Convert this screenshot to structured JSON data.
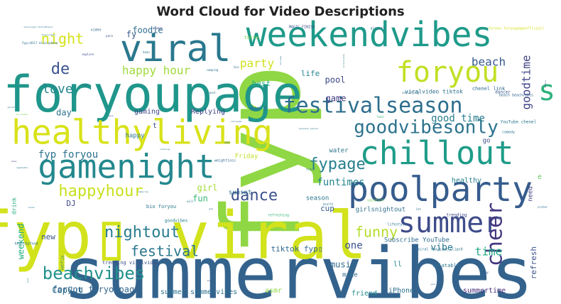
{
  "chart_data": {
    "type": "wordcloud",
    "title": "Word Cloud for Video Descriptions",
    "words": [
      {
        "text": "fyp",
        "weight": 100,
        "color": "#8fd744",
        "rotate": true
      },
      {
        "text": "summervibes",
        "weight": 80,
        "color": "#33638d",
        "rotate": false
      },
      {
        "text": "fyp▯ viral",
        "weight": 78,
        "color": "#d2e21b",
        "rotate": false
      },
      {
        "text": "foryoupage",
        "weight": 70,
        "color": "#1f968b",
        "rotate": false
      },
      {
        "text": "weekendvibes",
        "weight": 52,
        "color": "#1f9a8a",
        "rotate": false
      },
      {
        "text": "viral",
        "weight": 48,
        "color": "#29788e",
        "rotate": false
      },
      {
        "text": "healthyliving",
        "weight": 45,
        "color": "#d8e219",
        "rotate": false
      },
      {
        "text": "poolparty",
        "weight": 42,
        "color": "#365c8d",
        "rotate": false
      },
      {
        "text": "chillout",
        "weight": 42,
        "color": "#1e9c89",
        "rotate": false
      },
      {
        "text": "gamenight",
        "weight": 42,
        "color": "#23888e",
        "rotate": false
      },
      {
        "text": "summer",
        "weight": 40,
        "color": "#3e4c8a",
        "rotate": false
      },
      {
        "text": "foryou",
        "weight": 38,
        "color": "#c2df23",
        "rotate": false
      },
      {
        "text": "festivalseason",
        "weight": 30,
        "color": "#2e6f8e",
        "rotate": false
      },
      {
        "text": "cheer",
        "weight": 30,
        "color": "#453781",
        "rotate": true
      },
      {
        "text": "goodvibesonly",
        "weight": 25,
        "color": "#2c738e",
        "rotate": false
      },
      {
        "text": "s",
        "weight": 40,
        "color": "#2db27d",
        "rotate": false
      },
      {
        "text": "beachvibes",
        "weight": 22,
        "color": "#21918c",
        "rotate": false
      },
      {
        "text": "happyhour",
        "weight": 22,
        "color": "#c8e020",
        "rotate": false
      },
      {
        "text": "dance",
        "weight": 22,
        "color": "#3b528b",
        "rotate": false
      },
      {
        "text": "nightout",
        "weight": 22,
        "color": "#287c8e",
        "rotate": false
      },
      {
        "text": "fypage",
        "weight": 20,
        "color": "#277f8e",
        "rotate": false
      },
      {
        "text": "festival",
        "weight": 20,
        "color": "#2a768e",
        "rotate": false
      },
      {
        "text": "funny",
        "weight": 20,
        "color": "#b5de2b",
        "rotate": false
      },
      {
        "text": "de",
        "weight": 22,
        "color": "#3a548c",
        "rotate": false
      },
      {
        "text": "night",
        "weight": 18,
        "color": "#d5e21a",
        "rotate": false
      },
      {
        "text": "love",
        "weight": 18,
        "color": "#24868e",
        "rotate": false
      },
      {
        "text": "happy hour",
        "weight": 15,
        "color": "#9fda3a",
        "rotate": false
      },
      {
        "text": "party",
        "weight": 15,
        "color": "#d0e11c",
        "rotate": false
      },
      {
        "text": "beach",
        "weight": 15,
        "color": "#375b8d",
        "rotate": false
      },
      {
        "text": "goodtime",
        "weight": 15,
        "color": "#414487",
        "rotate": true
      },
      {
        "text": "good time",
        "weight": 14,
        "color": "#287d8e",
        "rotate": false
      },
      {
        "text": "time",
        "weight": 16,
        "color": "#23a983",
        "rotate": false
      },
      {
        "text": "fyp foryou",
        "weight": 14,
        "color": "#2c718e",
        "rotate": false
      },
      {
        "text": "funtimes",
        "weight": 14,
        "color": "#25858e",
        "rotate": false
      },
      {
        "text": "vibe",
        "weight": 13,
        "color": "#2a778e",
        "rotate": false
      },
      {
        "text": "one",
        "weight": 14,
        "color": "#3b528b",
        "rotate": false
      },
      {
        "text": "music",
        "weight": 12,
        "color": "#31688e",
        "rotate": false
      },
      {
        "text": "CapCut",
        "weight": 12,
        "color": "#2d708e",
        "rotate": false
      },
      {
        "text": "foryou foryoupage",
        "weight": 12,
        "color": "#32658e",
        "rotate": false
      },
      {
        "text": "weekend",
        "weight": 12,
        "color": "#27ad81",
        "rotate": true
      },
      {
        "text": "tiktok fyp▯",
        "weight": 11,
        "color": "#31688e",
        "rotate": false
      },
      {
        "text": "refresh",
        "weight": 11,
        "color": "#3b528b",
        "rotate": true
      },
      {
        "text": "gaming",
        "weight": 10,
        "color": "#3f4788",
        "rotate": false
      },
      {
        "text": "Replying",
        "weight": 10,
        "color": "#414287",
        "rotate": false
      },
      {
        "text": "pool",
        "weight": 12,
        "color": "#3e4989",
        "rotate": false
      },
      {
        "text": "game",
        "weight": 12,
        "color": "#443a83",
        "rotate": false
      },
      {
        "text": "fun",
        "weight": 12,
        "color": "#35b779",
        "rotate": false
      },
      {
        "text": "girl",
        "weight": 12,
        "color": "#a2da37",
        "rotate": false
      },
      {
        "text": "foodie",
        "weight": 12,
        "color": "#2e6e8e",
        "rotate": false
      },
      {
        "text": "day",
        "weight": 12,
        "color": "#2c728e",
        "rotate": false
      },
      {
        "text": "fy",
        "weight": 12,
        "color": "#38598c",
        "rotate": false
      },
      {
        "text": "best",
        "weight": 11,
        "color": "#25ac82",
        "rotate": false
      },
      {
        "text": "life",
        "weight": 11,
        "color": "#25838e",
        "rotate": false
      },
      {
        "text": "healthy",
        "weight": 10,
        "color": "#277f8e",
        "rotate": false
      },
      {
        "text": "summer summervibes",
        "weight": 10,
        "color": "#2c728e",
        "rotate": false
      },
      {
        "text": "asmr",
        "weight": 10,
        "color": "#8ed645",
        "rotate": false
      },
      {
        "text": "iPhone",
        "weight": 10,
        "color": "#2d708e",
        "rotate": false
      },
      {
        "text": "summertime",
        "weight": 10,
        "color": "#472f7d",
        "rotate": false
      },
      {
        "text": "friend",
        "weight": 10,
        "color": "#23888e",
        "rotate": false
      },
      {
        "text": "Subscribe YouTube",
        "weight": 9,
        "color": "#2f6c8e",
        "rotate": false
      },
      {
        "text": "girlsnightout",
        "weight": 9,
        "color": "#2e6f8e",
        "rotate": false
      },
      {
        "text": "season",
        "weight": 9,
        "color": "#2a768e",
        "rotate": false
      },
      {
        "text": "sunset",
        "weight": 9,
        "color": "#31688e",
        "rotate": false
      },
      {
        "text": "make",
        "weight": 9,
        "color": "#2f6b8e",
        "rotate": false
      },
      {
        "text": "ll",
        "weight": 10,
        "color": "#25838e",
        "rotate": false
      },
      {
        "text": "new",
        "weight": 11,
        "color": "#39568c",
        "rotate": false
      },
      {
        "text": "DJ",
        "weight": 11,
        "color": "#3e4a89",
        "rotate": false
      },
      {
        "text": "cup",
        "weight": 11,
        "color": "#365d8d",
        "rotate": false
      },
      {
        "text": "happy",
        "weight": 9,
        "color": "#2a788e",
        "rotate": false
      },
      {
        "text": "Friday",
        "weight": 9,
        "color": "#c0df25",
        "rotate": false
      },
      {
        "text": "water",
        "weight": 9,
        "color": "#2b748e",
        "rotate": false
      },
      {
        "text": "go",
        "weight": 9,
        "color": "#3e4989",
        "rotate": false
      },
      {
        "text": "need",
        "weight": 9,
        "color": "#414487",
        "rotate": true
      },
      {
        "text": "e",
        "weight": 10,
        "color": "#5ec962",
        "rotate": false
      },
      {
        "text": "t",
        "weight": 10,
        "color": "#3f4788",
        "rotate": false
      },
      {
        "text": "don t",
        "weight": 8,
        "color": "#31688e",
        "rotate": false
      },
      {
        "text": "relatable",
        "weight": 7,
        "color": "#2c738e",
        "rotate": false
      },
      {
        "text": "viralvideo tiktok",
        "weight": 8,
        "color": "#2d708e",
        "rotate": false
      },
      {
        "text": "chenel link",
        "weight": 7,
        "color": "#2f6b8e",
        "rotate": false
      },
      {
        "text": "taste",
        "weight": 7,
        "color": "#7ad151",
        "rotate": false
      },
      {
        "text": "drink",
        "weight": 8,
        "color": "#26ad81",
        "rotate": true
      },
      {
        "text": "bio foryou",
        "weight": 7,
        "color": "#2a768e",
        "rotate": false
      },
      {
        "text": "trending viralvideo",
        "weight": 7,
        "color": "#3b528b",
        "rotate": false
      },
      {
        "text": "goodvibes",
        "weight": 6,
        "color": "#27808e",
        "rotate": false
      },
      {
        "text": "dancer",
        "weight": 6,
        "color": "#38588c",
        "rotate": false
      },
      {
        "text": "YouTube chenel",
        "weight": 6,
        "color": "#2a768e",
        "rotate": false
      },
      {
        "text": "trending",
        "weight": 6,
        "color": "#3e4989",
        "rotate": false
      },
      {
        "text": "lifestyle",
        "weight": 5,
        "color": "#2c738e",
        "rotate": false
      },
      {
        "text": "netflix",
        "weight": 5,
        "color": "#2a768e",
        "rotate": true
      },
      {
        "text": "healthyfood",
        "weight": 5,
        "color": "#2d708e",
        "rotate": false
      },
      {
        "text": "weightloss",
        "weight": 5,
        "color": "#31688e",
        "rotate": false
      },
      {
        "text": "refreshing",
        "weight": 5,
        "color": "#35b779",
        "rotate": false
      },
      {
        "text": "vacation",
        "weight": 5,
        "color": "#7ad151",
        "rotate": false
      },
      {
        "text": "comedy",
        "weight": 5,
        "color": "#2c728e",
        "rotate": false
      },
      {
        "text": "viral fun_time_clips0",
        "weight": 5,
        "color": "#2a768e",
        "rotate": false
      },
      {
        "text": "beach beachvibes",
        "weight": 5,
        "color": "#31688e",
        "rotate": false
      },
      {
        "text": "foryou foryoupageofficiall",
        "weight": 5,
        "color": "#d0e11c",
        "rotate": false
      },
      {
        "text": "airport",
        "weight": 5,
        "color": "#2d708e",
        "rotate": false
      },
      {
        "text": "MAGIC FINISH",
        "weight": 5,
        "color": "#3b528b",
        "rotate": false
      },
      {
        "text": "video",
        "weight": 5,
        "color": "#31688e",
        "rotate": false
      },
      {
        "text": "camping",
        "weight": 4,
        "color": "#2c738e",
        "rotate": false
      },
      {
        "text": "travel",
        "weight": 4,
        "color": "#2a768e",
        "rotate": false
      },
      {
        "text": "explore",
        "weight": 4,
        "color": "#3e4989",
        "rotate": false
      },
      {
        "text": "bean",
        "weight": 5,
        "color": "#2c738e",
        "rotate": false
      },
      {
        "text": "always",
        "weight": 4,
        "color": "#3e4989",
        "rotate": false
      },
      {
        "text": "para",
        "weight": 4,
        "color": "#3b528b",
        "rotate": false
      },
      {
        "text": "fyp▯cOS17 dicasiphone",
        "weight": 4,
        "color": "#2d708e",
        "rotate": false
      },
      {
        "text": "tecnologia TechToBrasil",
        "weight": 3,
        "color": "#2a768e",
        "rotate": false
      },
      {
        "text": "Christmas",
        "weight": 3,
        "color": "#7ad151",
        "rotate": false
      },
      {
        "text": "baby",
        "weight": 3,
        "color": "#3e4989",
        "rotate": false
      },
      {
        "text": "vegetable",
        "weight": 3,
        "color": "#2c738e",
        "rotate": false
      },
      {
        "text": "memories",
        "weight": 3,
        "color": "#2d708e",
        "rotate": false
      },
      {
        "text": "cocktail",
        "weight": 3,
        "color": "#31688e",
        "rotate": false
      },
      {
        "text": "mom",
        "weight": 4,
        "color": "#2a768e",
        "rotate": false
      },
      {
        "text": "spot",
        "weight": 3,
        "color": "#3b528b",
        "rotate": false
      },
      {
        "text": "food",
        "weight": 4,
        "color": "#35b779",
        "rotate": false
      },
      {
        "text": "trend",
        "weight": 4,
        "color": "#31688e",
        "rotate": false
      },
      {
        "text": "health",
        "weight": 4,
        "color": "#2a768e",
        "rotate": false
      },
      {
        "text": "let",
        "weight": 4,
        "color": "#2c738e",
        "rotate": false
      },
      {
        "text": "play",
        "weight": 4,
        "color": "#3b528b",
        "rotate": false
      },
      {
        "text": "sister",
        "weight": 4,
        "color": "#2d708e",
        "rotate": false
      },
      {
        "text": "satisfying",
        "weight": 4,
        "color": "#31688e",
        "rotate": false
      },
      {
        "text": "iphone11 iphone",
        "weight": 3,
        "color": "#2a768e",
        "rotate": false
      },
      {
        "text": "relaxing",
        "weight": 3,
        "color": "#2c738e",
        "rotate": false
      },
      {
        "text": "Brasil",
        "weight": 3,
        "color": "#3e4989",
        "rotate": true
      },
      {
        "text": "viraltiktok",
        "weight": 3,
        "color": "#2a768e",
        "rotate": true
      },
      {
        "text": "year",
        "weight": 3,
        "color": "#31688e",
        "rotate": false
      },
      {
        "text": "look",
        "weight": 3,
        "color": "#2d708e",
        "rotate": true
      },
      {
        "text": "show",
        "weight": 3,
        "color": "#3b528b",
        "rotate": false
      },
      {
        "text": "reset",
        "weight": 3,
        "color": "#2c738e",
        "rotate": false
      },
      {
        "text": "will",
        "weight": 4,
        "color": "#2a768e",
        "rotate": false
      },
      {
        "text": "gym",
        "weight": 3,
        "color": "#31688e",
        "rotate": false
      },
      {
        "text": "bio",
        "weight": 4,
        "color": "#2d708e",
        "rotate": false
      },
      {
        "text": "cozy",
        "weight": 3,
        "color": "#3b528b",
        "rotate": false
      },
      {
        "text": "parati",
        "weight": 3,
        "color": "#2a768e",
        "rotate": false
      },
      {
        "text": "refresher",
        "weight": 3,
        "color": "#31688e",
        "rotate": false
      },
      {
        "text": "holiday",
        "weight": 3,
        "color": "#2c738e",
        "rotate": true
      },
      {
        "text": "funnyvideos",
        "weight": 3,
        "color": "#2a768e",
        "rotate": false
      }
    ]
  }
}
